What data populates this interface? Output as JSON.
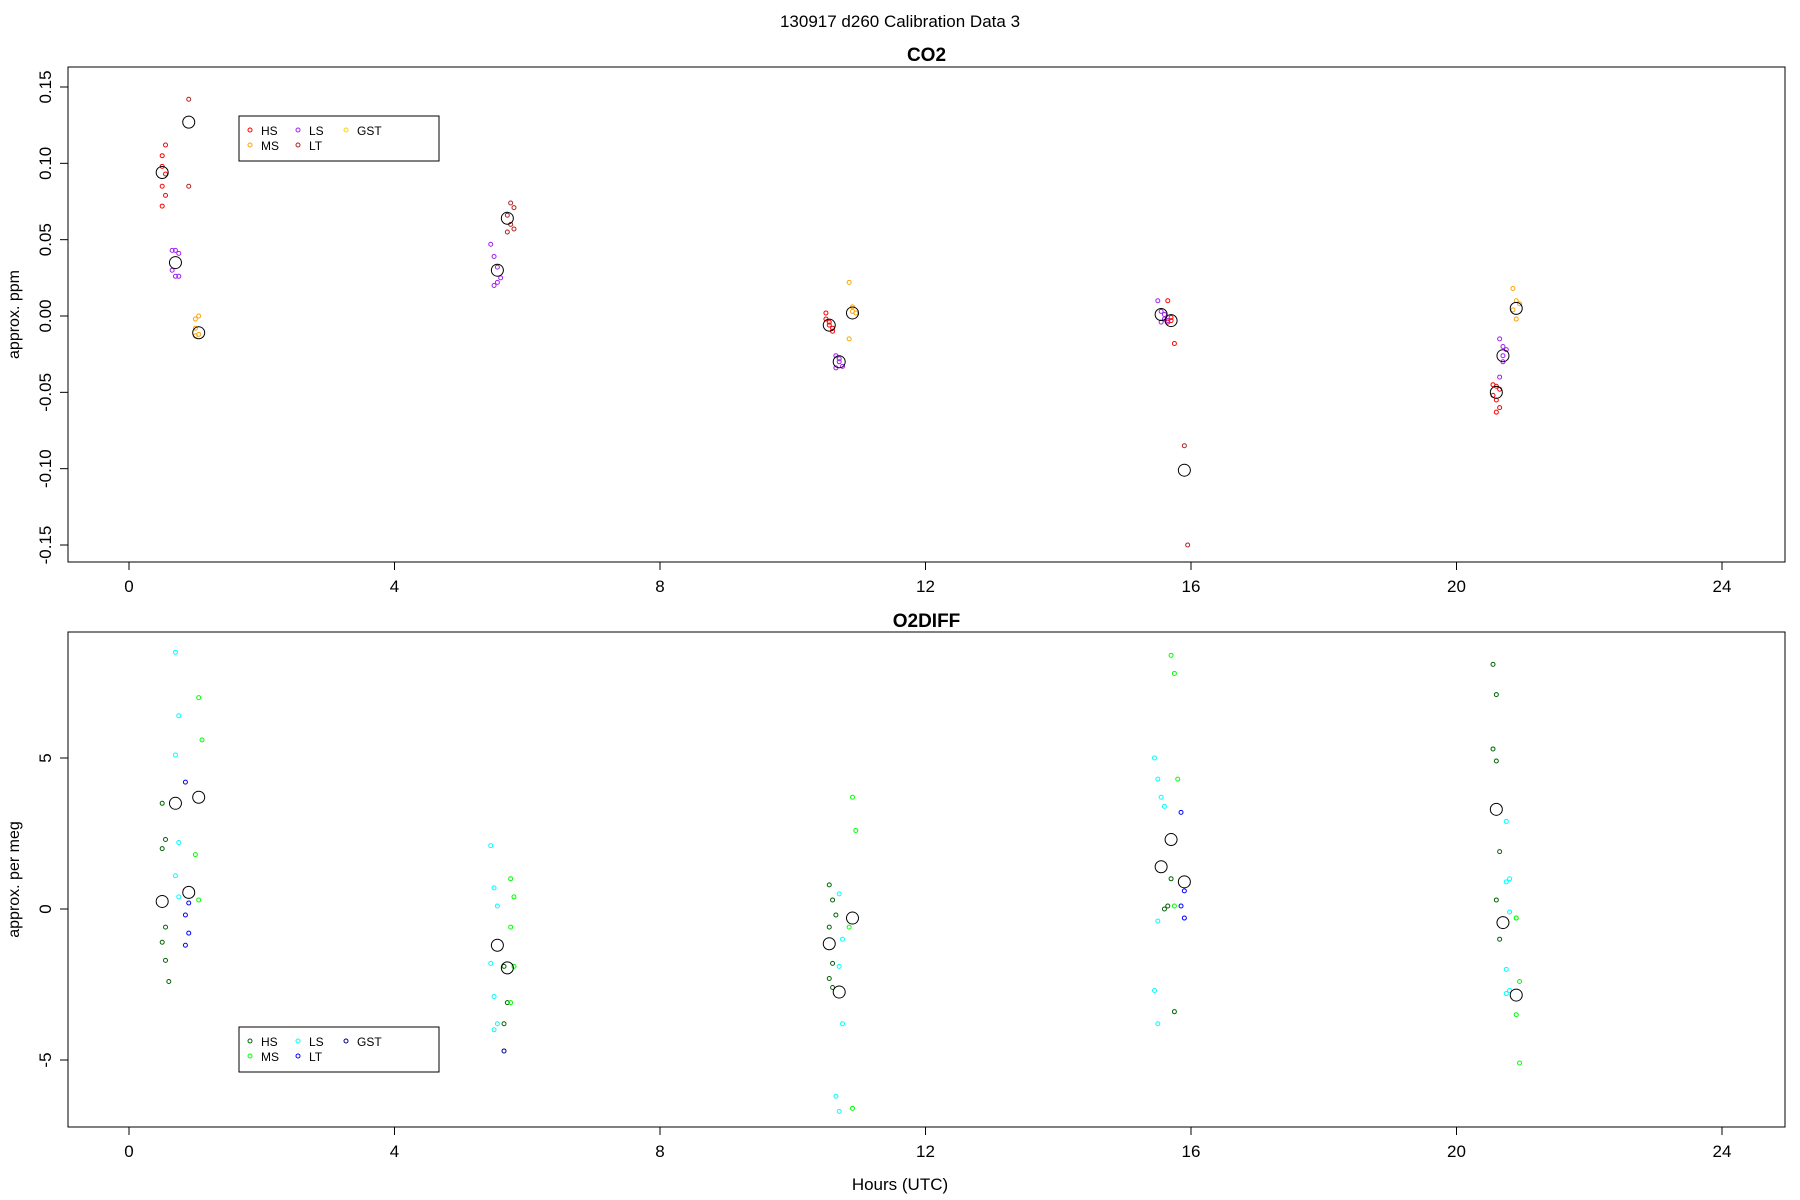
{
  "figure": {
    "header": "130917   d260   Calibration Data 3",
    "xlabel": "Hours (UTC)"
  },
  "chart_data": [
    {
      "type": "scatter",
      "title": "CO2",
      "xlabel": "",
      "ylabel": "approx. ppm",
      "xlim": [
        0,
        24
      ],
      "ylim": [
        -0.15,
        0.15
      ],
      "xticks": [
        "0",
        "4",
        "8",
        "12",
        "16",
        "20",
        "24"
      ],
      "yticks": [
        "-0.15",
        "-0.10",
        "-0.05",
        "0.00",
        "0.05",
        "0.10",
        "0.15"
      ],
      "legend": {
        "position": "top-left",
        "entries": [
          {
            "name": "HS",
            "color": "#ff0000"
          },
          {
            "name": "MS",
            "color": "#ffa500"
          },
          {
            "name": "LS",
            "color": "#a020f0"
          },
          {
            "name": "LT",
            "color": "#b22222"
          },
          {
            "name": "GST",
            "color": "#ffd700"
          }
        ]
      },
      "series": [
        {
          "name": "HS",
          "color": "#ff0000",
          "x": [
            0.5,
            0.55,
            0.5,
            0.55,
            0.5,
            0.55,
            0.5,
            10.5,
            10.55,
            10.6,
            10.5,
            10.55,
            10.6,
            15.65,
            15.7,
            15.65,
            15.7,
            15.75,
            20.55,
            20.6,
            20.65,
            20.55,
            20.6,
            20.65,
            20.6
          ],
          "y": [
            0.098,
            0.112,
            0.105,
            0.093,
            0.085,
            0.079,
            0.072,
            0.002,
            -0.004,
            -0.008,
            -0.002,
            -0.006,
            -0.01,
            0.01,
            -0.001,
            -0.004,
            -0.003,
            -0.018,
            -0.045,
            -0.046,
            -0.048,
            -0.052,
            -0.055,
            -0.06,
            -0.063
          ]
        },
        {
          "name": "MS",
          "color": "#ffa500",
          "x": [
            1.0,
            1.05,
            1.0,
            1.05,
            1.0,
            10.85,
            10.9,
            10.95,
            10.85,
            10.9,
            20.85,
            20.9,
            20.85,
            20.9,
            20.95
          ],
          "y": [
            -0.002,
            0.0,
            -0.008,
            -0.012,
            -0.013,
            0.022,
            0.006,
            0.002,
            -0.015,
            0.003,
            0.018,
            0.01,
            0.004,
            -0.002,
            0.008
          ]
        },
        {
          "name": "LS",
          "color": "#a020f0",
          "x": [
            0.65,
            0.7,
            0.75,
            0.65,
            0.7,
            0.75,
            5.45,
            5.5,
            5.55,
            5.6,
            5.5,
            5.55,
            10.65,
            10.7,
            10.75,
            10.65,
            10.7,
            15.5,
            15.55,
            15.6,
            15.55,
            15.6,
            15.65,
            20.65,
            20.7,
            20.75,
            20.7,
            20.65,
            20.7
          ],
          "y": [
            0.043,
            0.043,
            0.041,
            0.03,
            0.026,
            0.026,
            0.047,
            0.039,
            0.032,
            0.025,
            0.02,
            0.022,
            -0.026,
            -0.03,
            -0.033,
            -0.034,
            -0.028,
            0.01,
            0.003,
            -0.002,
            -0.004,
            0.001,
            -0.003,
            -0.015,
            -0.02,
            -0.022,
            -0.03,
            -0.04,
            -0.026
          ]
        },
        {
          "name": "LT",
          "color": "#b22222",
          "x": [
            0.9,
            0.9,
            5.75,
            5.8,
            5.7,
            5.75,
            5.8,
            5.7,
            15.9,
            15.95
          ],
          "y": [
            0.142,
            0.085,
            0.074,
            0.071,
            0.066,
            0.06,
            0.057,
            0.055,
            -0.085,
            -0.15
          ]
        },
        {
          "name": "GST",
          "color": "#ffd700",
          "x": [],
          "y": []
        }
      ],
      "means": {
        "x": [
          0.5,
          0.7,
          0.9,
          1.05,
          5.55,
          5.7,
          10.55,
          10.7,
          10.9,
          15.55,
          15.7,
          15.9,
          20.6,
          20.7,
          20.9
        ],
        "y": [
          0.094,
          0.035,
          0.127,
          -0.011,
          0.03,
          0.064,
          -0.006,
          -0.03,
          0.002,
          0.001,
          -0.003,
          -0.101,
          -0.05,
          -0.026,
          0.005
        ]
      }
    },
    {
      "type": "scatter",
      "title": "O2DIFF",
      "xlabel": "Hours (UTC)",
      "ylabel": "approx. per meg",
      "xlim": [
        0,
        24
      ],
      "ylim": [
        -7,
        9
      ],
      "xticks": [
        "0",
        "4",
        "8",
        "12",
        "16",
        "20",
        "24"
      ],
      "yticks": [
        "-5",
        "0",
        "5"
      ],
      "legend": {
        "position": "bottom-left",
        "entries": [
          {
            "name": "HS",
            "color": "#006400"
          },
          {
            "name": "MS",
            "color": "#00ff00"
          },
          {
            "name": "LS",
            "color": "#00ffff"
          },
          {
            "name": "LT",
            "color": "#0000ff"
          },
          {
            "name": "GST",
            "color": "#00008b"
          }
        ]
      },
      "series": [
        {
          "name": "HS",
          "color": "#006400",
          "x": [
            0.5,
            0.55,
            0.5,
            0.55,
            0.5,
            0.55,
            0.6,
            5.65,
            5.7,
            5.65,
            10.55,
            10.6,
            10.65,
            10.55,
            10.6,
            10.55,
            10.6,
            15.6,
            15.65,
            15.7,
            15.75,
            20.55,
            20.6,
            20.55,
            20.6,
            20.65,
            20.6,
            20.65
          ],
          "y": [
            3.5,
            2.3,
            2.0,
            -0.6,
            -1.1,
            -1.7,
            -2.4,
            -1.9,
            -3.1,
            -3.8,
            0.8,
            0.3,
            -0.2,
            -0.6,
            -1.8,
            -2.3,
            -2.6,
            0.0,
            0.1,
            1.0,
            -3.4,
            8.1,
            7.1,
            5.3,
            4.9,
            1.9,
            0.3,
            -1.0
          ]
        },
        {
          "name": "MS",
          "color": "#00ff00",
          "x": [
            1.05,
            1.1,
            1.0,
            1.05,
            5.75,
            5.8,
            5.75,
            5.8,
            5.75,
            10.9,
            10.95,
            10.85,
            10.9,
            15.7,
            15.75,
            15.8,
            15.75,
            20.9,
            20.95,
            20.9,
            20.95,
            20.9
          ],
          "y": [
            7.0,
            5.6,
            1.8,
            0.3,
            1.0,
            0.4,
            -0.6,
            -1.9,
            -3.1,
            3.7,
            2.6,
            -0.6,
            -6.6,
            8.4,
            7.8,
            4.3,
            0.1,
            -0.3,
            -2.4,
            -3.5,
            -5.1,
            -0.3
          ]
        },
        {
          "name": "LS",
          "color": "#00ffff",
          "x": [
            0.7,
            0.75,
            0.7,
            0.75,
            0.7,
            0.75,
            5.45,
            5.5,
            5.55,
            5.45,
            5.5,
            5.55,
            5.5,
            10.7,
            10.75,
            10.7,
            10.75,
            10.65,
            10.7,
            15.45,
            15.5,
            15.55,
            15.6,
            15.5,
            15.45,
            15.5,
            20.75,
            20.8,
            20.75,
            20.8,
            20.75,
            20.8,
            20.75
          ],
          "y": [
            8.5,
            6.4,
            5.1,
            2.2,
            1.1,
            0.4,
            2.1,
            0.7,
            0.1,
            -1.8,
            -2.9,
            -3.8,
            -4.0,
            0.5,
            -1.0,
            -1.9,
            -3.8,
            -6.2,
            -6.7,
            5.0,
            4.3,
            3.7,
            3.4,
            -0.4,
            -2.7,
            -3.8,
            2.9,
            1.0,
            0.9,
            -0.1,
            -2.0,
            -2.7,
            -2.8
          ]
        },
        {
          "name": "LT",
          "color": "#0000ff",
          "x": [
            0.85,
            0.9,
            0.85,
            0.9,
            0.85,
            15.85,
            15.9,
            15.85,
            15.9
          ],
          "y": [
            4.2,
            0.2,
            -0.2,
            -0.8,
            -1.2,
            3.2,
            0.6,
            0.1,
            -0.3
          ]
        },
        {
          "name": "GST",
          "color": "#00008b",
          "x": [
            5.65
          ],
          "y": [
            -4.7
          ]
        }
      ],
      "means": {
        "x": [
          0.5,
          0.7,
          0.9,
          1.05,
          5.55,
          5.7,
          10.55,
          10.7,
          10.9,
          15.55,
          15.7,
          15.9,
          20.6,
          20.7,
          20.9
        ],
        "y": [
          0.25,
          3.5,
          0.55,
          3.7,
          -1.2,
          -1.95,
          -1.15,
          -2.75,
          -0.3,
          1.4,
          2.3,
          0.9,
          3.3,
          -0.45,
          -2.85
        ]
      }
    }
  ]
}
